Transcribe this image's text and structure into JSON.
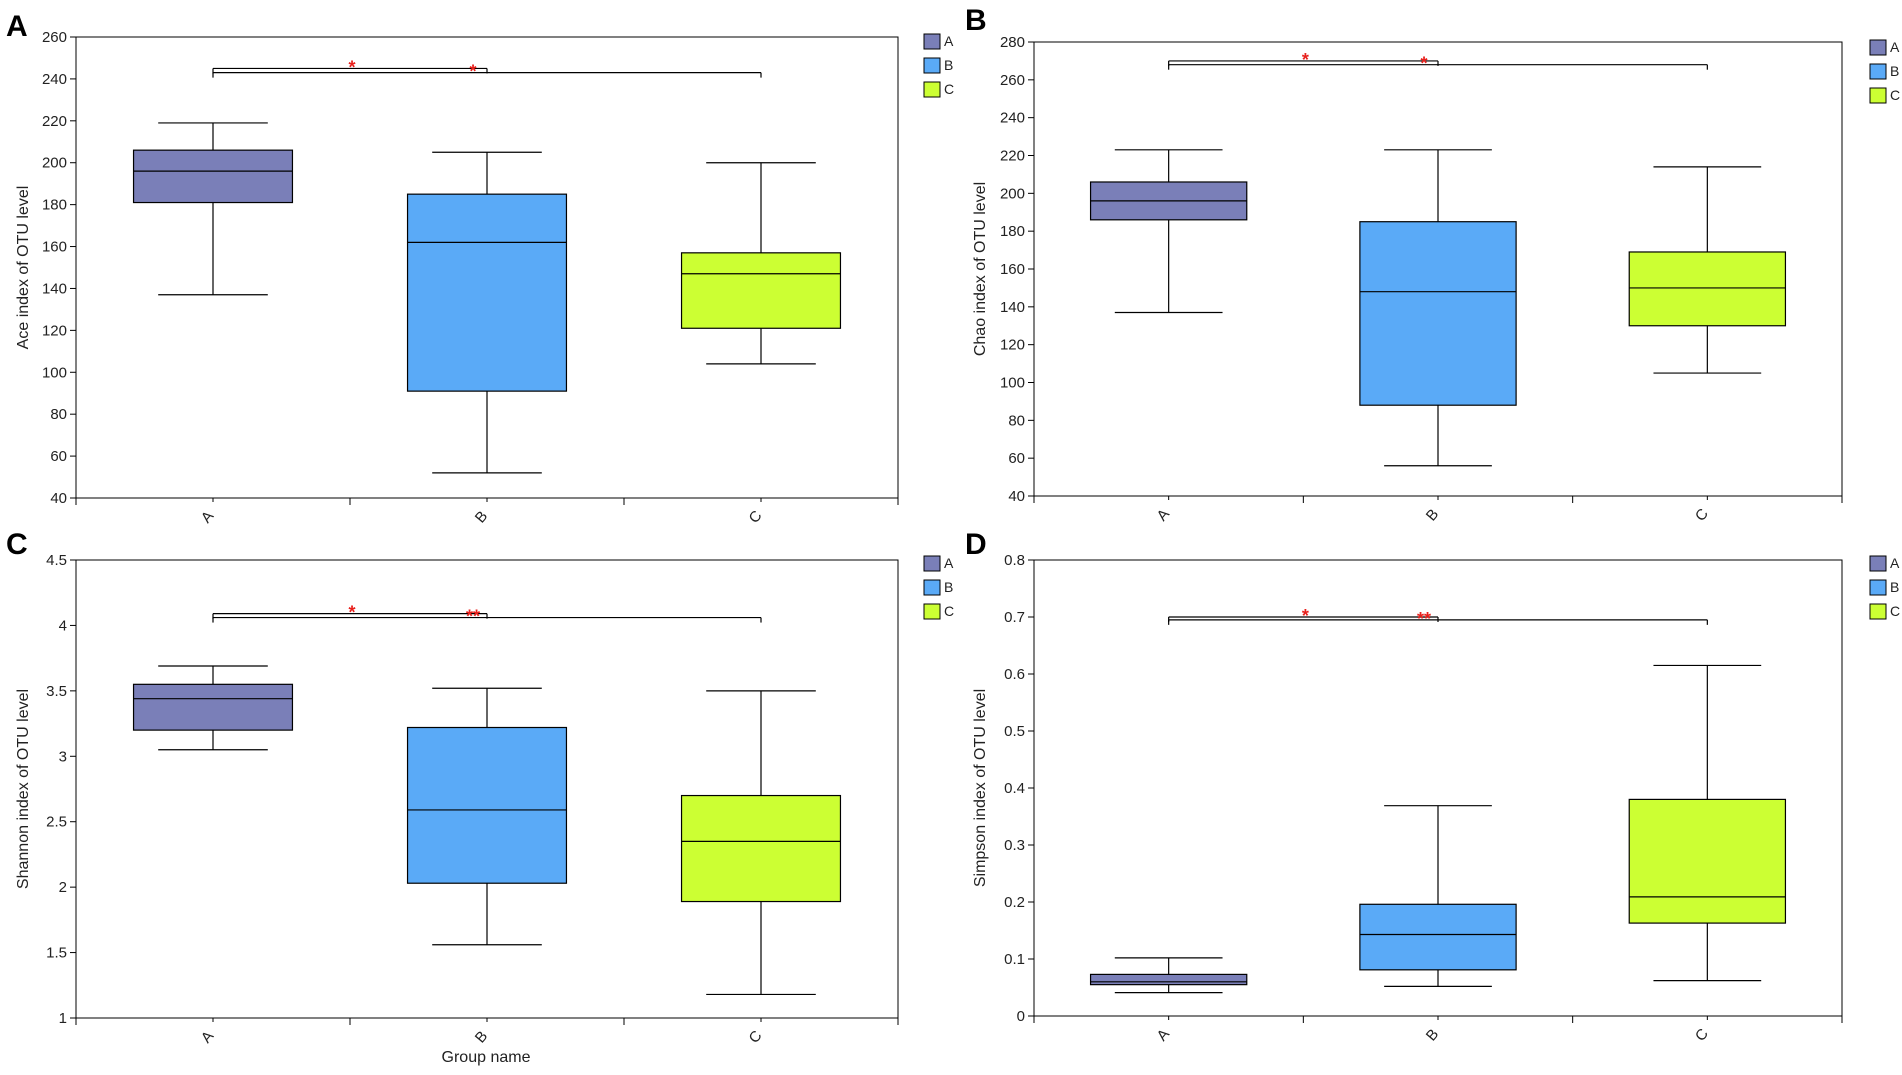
{
  "figure": {
    "xlabel_shared": "Group name"
  },
  "colors": {
    "A": "#7a7fb8",
    "B": "#5aaaf7",
    "C": "#ccff33",
    "star": "#e8201c",
    "line": "#000000"
  },
  "chart_data": [
    {
      "type": "box",
      "panel": "A",
      "ylabel": "Ace index of OTU level",
      "ylim": [
        40,
        260
      ],
      "yticks": [
        40,
        60,
        80,
        100,
        120,
        140,
        160,
        180,
        200,
        220,
        240,
        260
      ],
      "categories": [
        "A",
        "B",
        "C"
      ],
      "legend": [
        "A",
        "B",
        "C"
      ],
      "boxes": [
        {
          "group": "A",
          "min": 137,
          "q1": 181,
          "median": 196,
          "q3": 206,
          "max": 219
        },
        {
          "group": "B",
          "min": 52,
          "q1": 91,
          "median": 162,
          "q3": 185,
          "max": 205
        },
        {
          "group": "C",
          "min": 104,
          "q1": 121,
          "median": 147,
          "q3": 157,
          "max": 200
        }
      ],
      "significance": [
        {
          "from": "A",
          "to": "B",
          "y": 245,
          "label": "*"
        },
        {
          "from": "A",
          "to": "C",
          "y": 243,
          "label": "*"
        }
      ]
    },
    {
      "type": "box",
      "panel": "B",
      "ylabel": "Chao index of OTU level",
      "ylim": [
        40,
        280
      ],
      "yticks": [
        40,
        60,
        80,
        100,
        120,
        140,
        160,
        180,
        200,
        220,
        240,
        260,
        280
      ],
      "categories": [
        "A",
        "B",
        "C"
      ],
      "legend": [
        "A",
        "B",
        "C"
      ],
      "boxes": [
        {
          "group": "A",
          "min": 137,
          "q1": 186,
          "median": 196,
          "q3": 206,
          "max": 223
        },
        {
          "group": "B",
          "min": 56,
          "q1": 88,
          "median": 148,
          "q3": 185,
          "max": 223
        },
        {
          "group": "C",
          "min": 105,
          "q1": 130,
          "median": 150,
          "q3": 169,
          "max": 214
        }
      ],
      "significance": [
        {
          "from": "A",
          "to": "B",
          "y": 270,
          "label": "*"
        },
        {
          "from": "A",
          "to": "C",
          "y": 268,
          "label": "*"
        }
      ]
    },
    {
      "type": "box",
      "panel": "C",
      "ylabel": "Shannon index of OTU level",
      "ylim": [
        1,
        4.5
      ],
      "yticks": [
        1,
        1.5,
        2,
        2.5,
        3,
        3.5,
        4,
        4.5
      ],
      "categories": [
        "A",
        "B",
        "C"
      ],
      "legend": [
        "A",
        "B",
        "C"
      ],
      "boxes": [
        {
          "group": "A",
          "min": 3.05,
          "q1": 3.2,
          "median": 3.44,
          "q3": 3.55,
          "max": 3.69
        },
        {
          "group": "B",
          "min": 1.56,
          "q1": 2.03,
          "median": 2.59,
          "q3": 3.22,
          "max": 3.52
        },
        {
          "group": "C",
          "min": 1.18,
          "q1": 1.89,
          "median": 2.35,
          "q3": 2.7,
          "max": 3.5
        }
      ],
      "significance": [
        {
          "from": "A",
          "to": "B",
          "y": 4.09,
          "label": "*"
        },
        {
          "from": "A",
          "to": "C",
          "y": 4.06,
          "label": "**"
        }
      ]
    },
    {
      "type": "box",
      "panel": "D",
      "ylabel": "Simpson index of OTU level",
      "ylim": [
        0,
        0.8
      ],
      "yticks": [
        0,
        0.1,
        0.2,
        0.3,
        0.4,
        0.5,
        0.6,
        0.7,
        0.8
      ],
      "categories": [
        "A",
        "B",
        "C"
      ],
      "legend": [
        "A",
        "B",
        "C"
      ],
      "boxes": [
        {
          "group": "A",
          "min": 0.041,
          "q1": 0.055,
          "median": 0.06,
          "q3": 0.073,
          "max": 0.102
        },
        {
          "group": "B",
          "min": 0.052,
          "q1": 0.081,
          "median": 0.143,
          "q3": 0.196,
          "max": 0.369
        },
        {
          "group": "C",
          "min": 0.062,
          "q1": 0.163,
          "median": 0.209,
          "q3": 0.38,
          "max": 0.615
        }
      ],
      "significance": [
        {
          "from": "A",
          "to": "B",
          "y": 0.7,
          "label": "*"
        },
        {
          "from": "A",
          "to": "C",
          "y": 0.695,
          "label": "**"
        }
      ]
    }
  ]
}
